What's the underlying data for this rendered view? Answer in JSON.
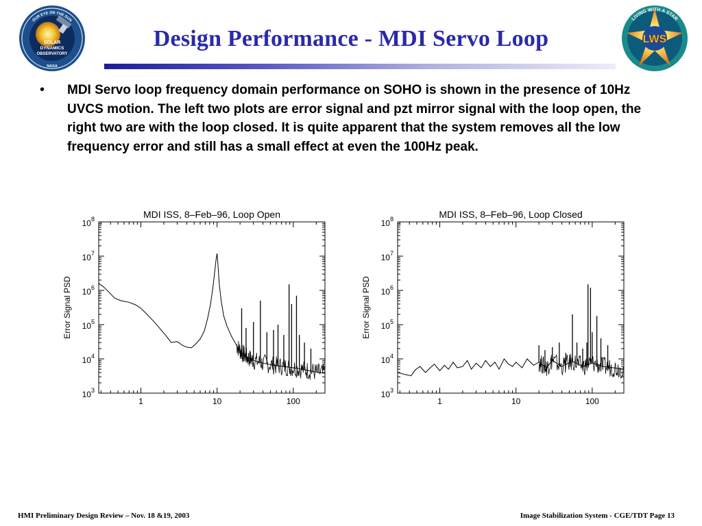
{
  "slide": {
    "title": "Design Performance - MDI Servo Loop",
    "bullet": "MDI Servo loop frequency domain performance on SOHO is shown in the presence of 10Hz UVCS motion. The left two plots are error signal and pzt mirror signal with the loop open, the right two are with the loop closed.   It is quite apparent that the system removes all the low frequency error and still has a small effect at even the 100Hz peak.",
    "bullet_marker": "•"
  },
  "logos": {
    "left": {
      "name": "solar-dynamics-observatory-logo",
      "text_top": "OUR EYE ON THE SUN",
      "text_center": [
        "SOLAR",
        "DYNAMICS",
        "OBSERVATORY"
      ],
      "text_bottom": "NASA",
      "color": "#1c4f8c"
    },
    "right": {
      "name": "living-with-a-star-logo",
      "text_ring": "LIVING WITH A STAR",
      "text_center": "LWS",
      "color": "#1a8a8a"
    }
  },
  "footer": {
    "left": "HMI Preliminary Design Review – Nov. 18 &19, 2003",
    "right": "Image Stabilization System - CGE/TDT   Page 13"
  },
  "chart_data": [
    {
      "type": "line",
      "title": "MDI ISS, 8–Feb–96, Loop Open",
      "xlabel": "",
      "ylabel": "Error Signal PSD",
      "xscale": "log",
      "yscale": "log",
      "xlim": [
        0.28,
        260
      ],
      "ylim": [
        1000,
        100000000
      ],
      "xticks": [
        "1",
        "10",
        "100"
      ],
      "yticks": [
        {
          "base": "10",
          "exp": "3"
        },
        {
          "base": "10",
          "exp": "4"
        },
        {
          "base": "10",
          "exp": "5"
        },
        {
          "base": "10",
          "exp": "6"
        },
        {
          "base": "10",
          "exp": "7"
        },
        {
          "base": "10",
          "exp": "8"
        }
      ],
      "grid": false,
      "color": "#000000",
      "series": [
        {
          "x": [
            0.28,
            0.32,
            0.38,
            0.45,
            0.55,
            0.7,
            0.85,
            1.0,
            1.2,
            1.45,
            1.75,
            2.1,
            2.5,
            3.0,
            3.5,
            4.0,
            4.6,
            5.3,
            6.0,
            6.8,
            7.5,
            8.2,
            8.8,
            9.3,
            9.7,
            10.0,
            10.3,
            10.7,
            11.3,
            12.2,
            13.5,
            15.5,
            18.0,
            21.0,
            25.0,
            30.0,
            40.0,
            55.0,
            75.0,
            100.0,
            140.0,
            190.0,
            260.0
          ],
          "y": [
            1600000,
            1300000,
            900000,
            600000,
            500000,
            450000,
            380000,
            300000,
            200000,
            130000,
            80000,
            50000,
            30000,
            32000,
            25000,
            22000,
            21000,
            28000,
            38000,
            65000,
            150000,
            400000,
            1200000,
            3500000,
            8000000,
            12000000,
            5000000,
            1500000,
            500000,
            180000,
            90000,
            45000,
            25000,
            15000,
            11000,
            9000,
            7500,
            6500,
            6000,
            5500,
            4800,
            4200,
            3800
          ]
        }
      ],
      "spikes": [
        {
          "x": 10.0,
          "y": 12000000
        },
        {
          "x": 21.0,
          "y": 300000
        },
        {
          "x": 24.0,
          "y": 80000
        },
        {
          "x": 30.0,
          "y": 120000
        },
        {
          "x": 37.0,
          "y": 500000
        },
        {
          "x": 45.0,
          "y": 60000
        },
        {
          "x": 55.0,
          "y": 70000
        },
        {
          "x": 63.0,
          "y": 100000
        },
        {
          "x": 75.0,
          "y": 50000
        },
        {
          "x": 88.0,
          "y": 1500000
        },
        {
          "x": 95.0,
          "y": 400000
        },
        {
          "x": 110.0,
          "y": 700000
        },
        {
          "x": 120.0,
          "y": 50000
        },
        {
          "x": 140.0,
          "y": 30000
        },
        {
          "x": 170.0,
          "y": 20000
        }
      ]
    },
    {
      "type": "line",
      "title": "MDI ISS, 8–Feb–96, Loop Closed",
      "xlabel": "",
      "ylabel": "Error Signal PSD",
      "xscale": "log",
      "yscale": "log",
      "xlim": [
        0.28,
        260
      ],
      "ylim": [
        1000,
        100000000
      ],
      "xticks": [
        "1",
        "10",
        "100"
      ],
      "yticks": [
        {
          "base": "10",
          "exp": "3"
        },
        {
          "base": "10",
          "exp": "4"
        },
        {
          "base": "10",
          "exp": "5"
        },
        {
          "base": "10",
          "exp": "6"
        },
        {
          "base": "10",
          "exp": "7"
        },
        {
          "base": "10",
          "exp": "8"
        }
      ],
      "grid": false,
      "color": "#000000",
      "series": [
        {
          "x": [
            0.28,
            0.35,
            0.42,
            0.48,
            0.55,
            0.65,
            0.75,
            0.85,
            1.0,
            1.15,
            1.3,
            1.5,
            1.7,
            2.0,
            2.3,
            2.6,
            3.0,
            3.5,
            4.0,
            4.6,
            5.3,
            6.0,
            7.0,
            8.0,
            9.0,
            10.0,
            12.0,
            14.0,
            17.0,
            20.0,
            25.0,
            30.0,
            40.0,
            55.0,
            75.0,
            100.0,
            140.0,
            190.0,
            260.0
          ],
          "y": [
            4000,
            3500,
            3200,
            4800,
            6000,
            4000,
            5500,
            7000,
            4500,
            6500,
            5000,
            8000,
            5500,
            6000,
            9000,
            5000,
            7500,
            5500,
            9000,
            6000,
            8000,
            5000,
            10000,
            7000,
            6000,
            8000,
            5500,
            10000,
            6500,
            8000,
            5500,
            9000,
            6000,
            8500,
            6000,
            7500,
            6000,
            5500,
            5000
          ]
        }
      ],
      "spikes": [
        {
          "x": 20.0,
          "y": 25000
        },
        {
          "x": 24.0,
          "y": 18000
        },
        {
          "x": 30.0,
          "y": 22000
        },
        {
          "x": 37.0,
          "y": 30000
        },
        {
          "x": 45.0,
          "y": 15000
        },
        {
          "x": 55.0,
          "y": 200000
        },
        {
          "x": 63.0,
          "y": 30000
        },
        {
          "x": 75.0,
          "y": 20000
        },
        {
          "x": 85.0,
          "y": 30000
        },
        {
          "x": 88.0,
          "y": 1500000
        },
        {
          "x": 95.0,
          "y": 1200000
        },
        {
          "x": 100.0,
          "y": 60000
        },
        {
          "x": 115.0,
          "y": 180000
        },
        {
          "x": 130.0,
          "y": 40000
        },
        {
          "x": 160.0,
          "y": 25000
        }
      ]
    }
  ]
}
